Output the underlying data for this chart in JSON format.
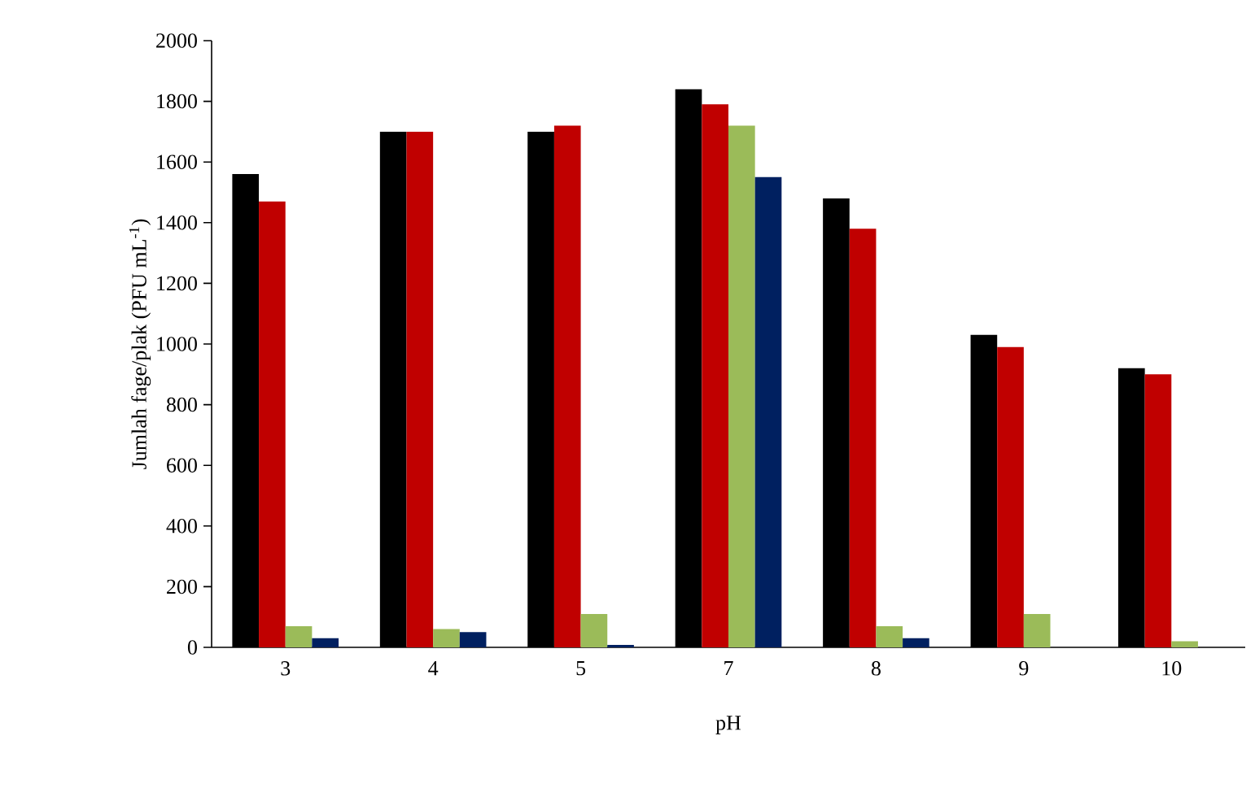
{
  "chart_data": {
    "type": "bar",
    "xlabel": "pH",
    "ylabel": "Jumlah fage/plak (PFU mL$^{-1}$)",
    "categories": [
      "3",
      "4",
      "5",
      "7",
      "8",
      "9",
      "10"
    ],
    "series": [
      {
        "color": "#000000",
        "values": [
          1560,
          1700,
          1700,
          1840,
          1480,
          1030,
          920
        ]
      },
      {
        "color": "#c00000",
        "values": [
          1470,
          1700,
          1720,
          1790,
          1380,
          990,
          900
        ]
      },
      {
        "color": "#9bbb59",
        "values": [
          70,
          60,
          110,
          1720,
          70,
          110,
          20
        ]
      },
      {
        "color": "#002060",
        "values": [
          30,
          50,
          8,
          1550,
          30,
          0,
          0
        ]
      }
    ],
    "ylim": [
      0,
      2000
    ],
    "yticks": [
      0,
      200,
      400,
      600,
      800,
      1000,
      1200,
      1400,
      1600,
      1800,
      2000
    ],
    "grid": false
  }
}
